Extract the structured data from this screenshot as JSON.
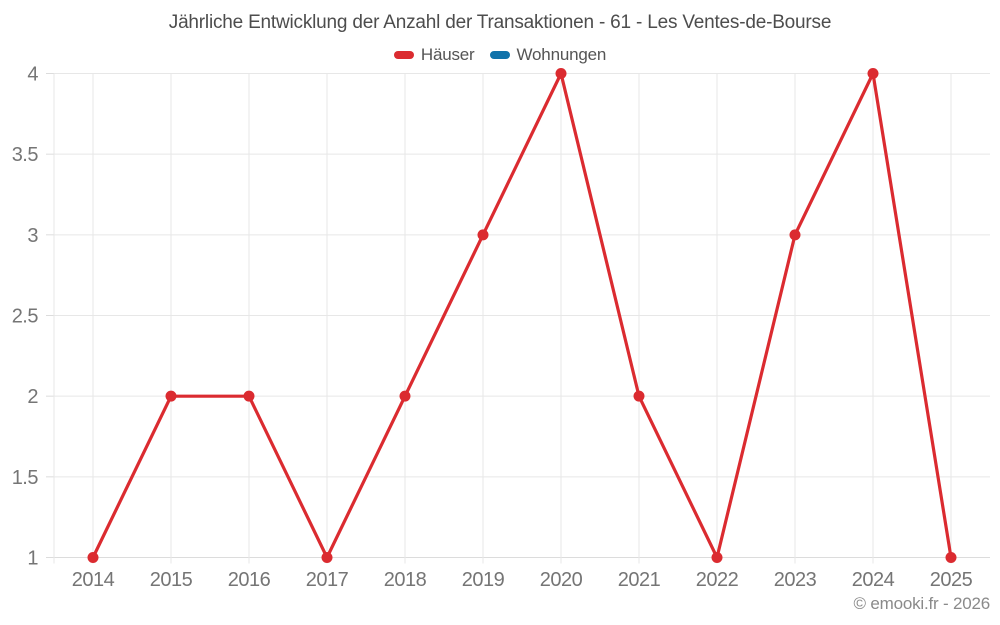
{
  "chart_data": {
    "type": "line",
    "title": "Jährliche Entwicklung der Anzahl der Transaktionen - 61 - Les Ventes-de-Bourse",
    "categories": [
      "2014",
      "2015",
      "2016",
      "2017",
      "2018",
      "2019",
      "2020",
      "2021",
      "2022",
      "2023",
      "2024",
      "2025"
    ],
    "series": [
      {
        "name": "Häuser",
        "color": "#db2b30",
        "values": [
          1,
          2,
          2,
          1,
          2,
          3,
          4,
          2,
          1,
          3,
          4,
          1
        ]
      },
      {
        "name": "Wohnungen",
        "color": "#0f72aa",
        "values": []
      }
    ],
    "xlabel": "",
    "ylabel": "",
    "ylim": [
      1,
      4
    ],
    "yticks": [
      1,
      1.5,
      2,
      2.5,
      3,
      3.5,
      4
    ],
    "grid": true,
    "legend_position": "top",
    "grid_color": "#e7e7e7",
    "axis_color": "#dcdcdc",
    "tick_label_color": "#757575"
  },
  "footer": {
    "copyright": "© emooki.fr - 2026"
  }
}
